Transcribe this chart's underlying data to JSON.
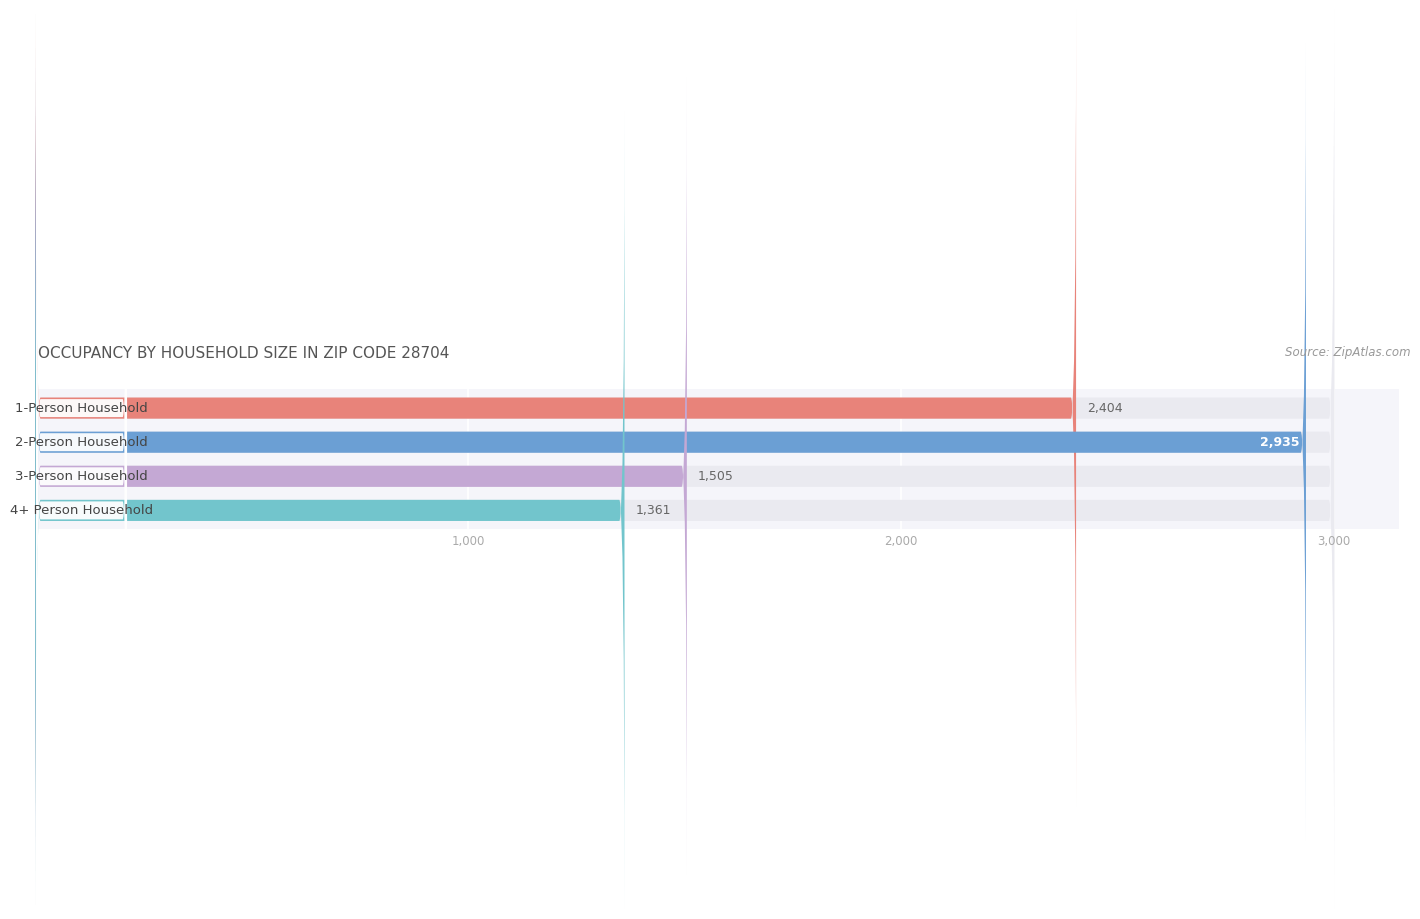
{
  "title": "OCCUPANCY BY HOUSEHOLD SIZE IN ZIP CODE 28704",
  "source": "Source: ZipAtlas.com",
  "categories": [
    "1-Person Household",
    "2-Person Household",
    "3-Person Household",
    "4+ Person Household"
  ],
  "values": [
    2404,
    2935,
    1505,
    1361
  ],
  "bar_colors": [
    "#E8837A",
    "#6B9FD4",
    "#C4A8D4",
    "#72C5CC"
  ],
  "bar_bg_color": "#EAEAF0",
  "xlim_max": 3150,
  "data_max": 3000,
  "xticks": [
    1000,
    2000,
    3000
  ],
  "label_fontsize": 9.5,
  "value_fontsize": 9,
  "title_fontsize": 11,
  "source_fontsize": 8.5,
  "background_color": "#FFFFFF",
  "axes_bg_color": "#F5F5FA",
  "label_pill_color": "#FFFFFF",
  "label_text_color": "#444444",
  "tick_color": "#AAAAAA",
  "grid_color": "#FFFFFF",
  "title_color": "#555555",
  "source_color": "#999999"
}
